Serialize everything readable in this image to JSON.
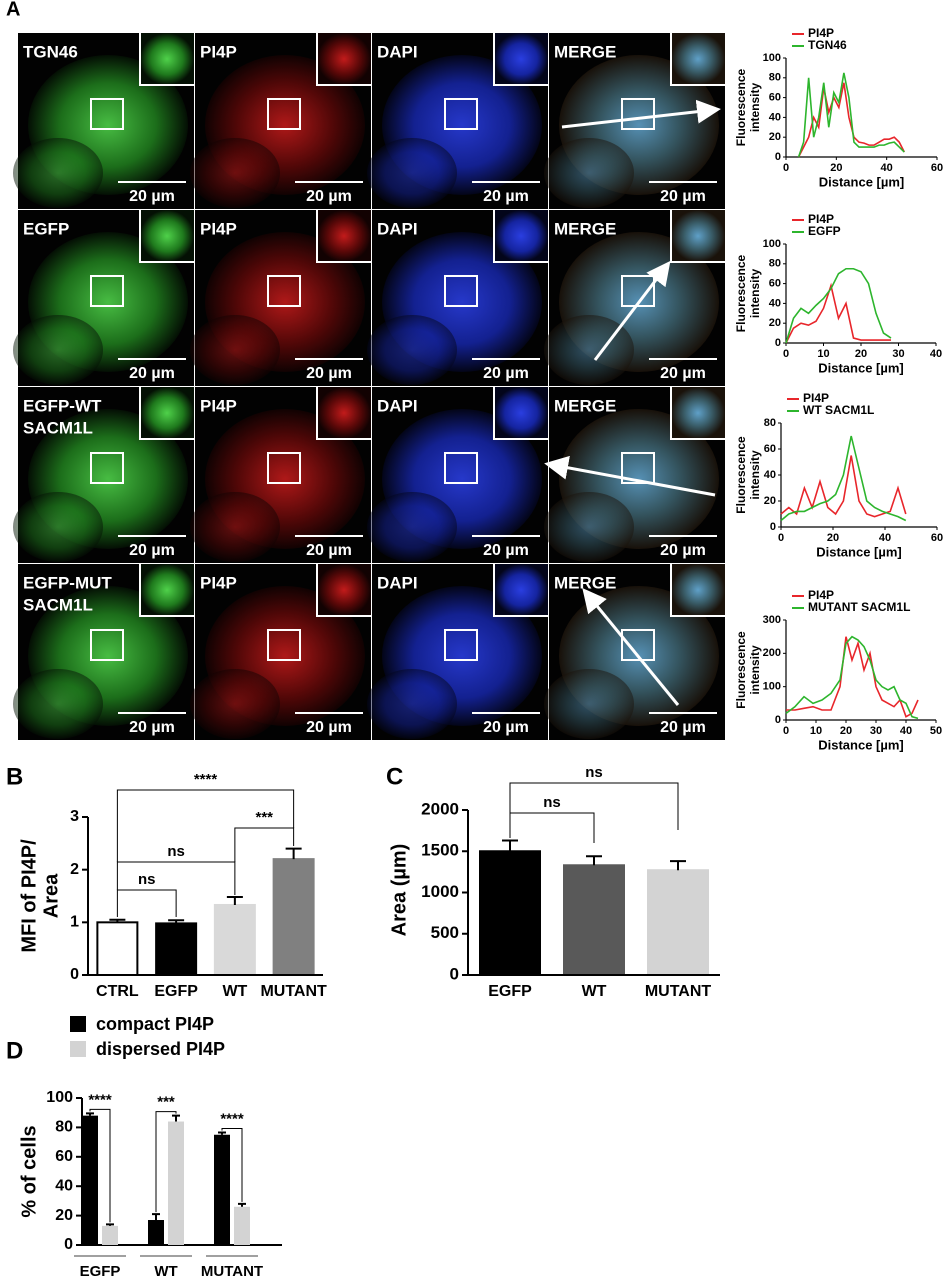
{
  "panels": {
    "a": "A",
    "b": "B",
    "c": "C",
    "d": "D"
  },
  "micrographs": {
    "rows": [
      {
        "panels": [
          {
            "label": [
              "TGN46"
            ],
            "scale": "20 µm"
          },
          {
            "label": [
              "PI4P"
            ],
            "scale": "20 µm"
          },
          {
            "label": [
              "DAPI"
            ],
            "scale": "20 µm"
          },
          {
            "label": [
              "MERGE"
            ],
            "scale": "20 µm"
          }
        ]
      },
      {
        "panels": [
          {
            "label": [
              "EGFP"
            ],
            "scale": "20 µm"
          },
          {
            "label": [
              "PI4P"
            ],
            "scale": "20 µm"
          },
          {
            "label": [
              "DAPI"
            ],
            "scale": "20 µm"
          },
          {
            "label": [
              "MERGE"
            ],
            "scale": "20 µm"
          }
        ]
      },
      {
        "panels": [
          {
            "label": [
              "EGFP-WT",
              "SACM1L"
            ],
            "scale": "20 µm"
          },
          {
            "label": [
              "PI4P"
            ],
            "scale": "20 µm"
          },
          {
            "label": [
              "DAPI"
            ],
            "scale": "20 µm"
          },
          {
            "label": [
              "MERGE"
            ],
            "scale": "20 µm"
          }
        ]
      },
      {
        "panels": [
          {
            "label": [
              "EGFP-MUT",
              "SACM1L"
            ],
            "scale": "20 µm"
          },
          {
            "label": [
              "PI4P"
            ],
            "scale": "20 µm"
          },
          {
            "label": [
              "DAPI"
            ],
            "scale": "20 µm"
          },
          {
            "label": [
              "MERGE"
            ],
            "scale": "20 µm"
          }
        ]
      }
    ]
  },
  "chart_data": [
    {
      "type": "line",
      "y_label": [
        "Fluorescence",
        "intensity"
      ],
      "x_label": "Distance [µm]",
      "x": [
        5,
        7,
        9,
        11,
        13,
        15,
        17,
        19,
        21,
        23,
        25,
        27,
        29,
        31,
        33,
        35,
        37,
        39,
        41,
        43,
        45,
        47
      ],
      "series": [
        {
          "name": "PI4P",
          "color": "#e8262b",
          "values": [
            0,
            10,
            20,
            40,
            30,
            70,
            45,
            60,
            50,
            75,
            40,
            20,
            15,
            14,
            12,
            12,
            15,
            18,
            18,
            20,
            15,
            5
          ]
        },
        {
          "name": "TGN46",
          "color": "#2db52d",
          "values": [
            0,
            15,
            80,
            20,
            40,
            75,
            30,
            65,
            55,
            85,
            60,
            15,
            10,
            10,
            10,
            10,
            12,
            12,
            14,
            15,
            10,
            5
          ]
        }
      ],
      "xlim": [
        0,
        60
      ],
      "xticks": [
        0,
        20,
        40,
        60
      ],
      "ylim": [
        0,
        100
      ],
      "yticks": [
        0,
        20,
        40,
        60,
        80,
        100
      ]
    },
    {
      "type": "line",
      "y_label": [
        "Fluorescence",
        "intensity"
      ],
      "x_label": "Distance [µm]",
      "x": [
        0,
        2,
        4,
        6,
        8,
        10,
        12,
        14,
        16,
        18,
        20,
        22,
        24,
        26,
        28
      ],
      "series": [
        {
          "name": "PI4P",
          "color": "#e8262b",
          "values": [
            0,
            15,
            20,
            18,
            22,
            35,
            58,
            25,
            40,
            5,
            3,
            3,
            3,
            3,
            3
          ]
        },
        {
          "name": "EGFP",
          "color": "#2db52d",
          "values": [
            0,
            25,
            35,
            30,
            38,
            45,
            55,
            70,
            75,
            75,
            72,
            60,
            30,
            10,
            5
          ]
        }
      ],
      "xlim": [
        0,
        40
      ],
      "xticks": [
        0,
        10,
        20,
        30,
        40
      ],
      "ylim": [
        0,
        100
      ],
      "yticks": [
        0,
        20,
        40,
        60,
        80,
        100
      ]
    },
    {
      "type": "line",
      "y_label": [
        "Fluorescence",
        "intensity"
      ],
      "x_label": "Distance [µm]",
      "x": [
        0,
        3,
        6,
        9,
        12,
        15,
        18,
        21,
        24,
        27,
        30,
        33,
        36,
        39,
        42,
        45,
        48
      ],
      "series": [
        {
          "name": "PI4P",
          "color": "#e8262b",
          "values": [
            10,
            15,
            10,
            30,
            15,
            35,
            15,
            10,
            20,
            55,
            20,
            10,
            8,
            10,
            12,
            30,
            10
          ]
        },
        {
          "name": "WT SACM1L",
          "color": "#2db52d",
          "values": [
            5,
            10,
            12,
            12,
            15,
            18,
            20,
            25,
            40,
            70,
            45,
            20,
            15,
            12,
            10,
            8,
            5
          ]
        }
      ],
      "xlim": [
        0,
        60
      ],
      "xticks": [
        0,
        20,
        40,
        60
      ],
      "ylim": [
        0,
        80
      ],
      "yticks": [
        0,
        20,
        40,
        60,
        80
      ]
    },
    {
      "type": "line",
      "y_label": [
        "Fluorescence",
        "intensity"
      ],
      "x_label": "Distance [µm]",
      "x": [
        0,
        3,
        6,
        9,
        12,
        15,
        18,
        20,
        22,
        24,
        26,
        28,
        30,
        32,
        34,
        36,
        38,
        40,
        42,
        44
      ],
      "series": [
        {
          "name": "PI4P",
          "color": "#e8262b",
          "values": [
            30,
            30,
            35,
            40,
            30,
            30,
            100,
            250,
            180,
            230,
            150,
            200,
            100,
            60,
            50,
            40,
            60,
            10,
            20,
            60
          ]
        },
        {
          "name": "MUTANT SACM1L",
          "color": "#2db52d",
          "values": [
            20,
            40,
            70,
            50,
            60,
            80,
            120,
            230,
            250,
            240,
            220,
            180,
            120,
            100,
            90,
            100,
            60,
            50,
            10,
            5
          ]
        }
      ],
      "xlim": [
        0,
        50
      ],
      "xticks": [
        0,
        10,
        20,
        30,
        40,
        50
      ],
      "ylim": [
        0,
        300
      ],
      "yticks": [
        0,
        100,
        200,
        300
      ]
    },
    {
      "type": "bar",
      "y_label": [
        "MFI of PI4P/",
        "Area"
      ],
      "categories": [
        "CTRL",
        "EGFP",
        "WT",
        "MUTANT"
      ],
      "values": [
        1.0,
        0.98,
        1.33,
        2.2
      ],
      "errors": [
        0.05,
        0.06,
        0.15,
        0.2
      ],
      "colors": [
        "#ffffff",
        "#000000",
        "#d9d9d9",
        "#808080"
      ],
      "edgecolors": [
        "#000000",
        "#000000",
        "#d9d9d9",
        "#808080"
      ],
      "ylim": [
        0,
        3
      ],
      "yticks": [
        0,
        1,
        2,
        3
      ],
      "significance": [
        {
          "label": "****",
          "pair": [
            "CTRL",
            "MUTANT"
          ]
        },
        {
          "label": "***",
          "pair": [
            "WT",
            "MUTANT"
          ]
        },
        {
          "label": "ns",
          "pair": [
            "CTRL",
            "WT"
          ]
        },
        {
          "label": "ns",
          "pair": [
            "CTRL",
            "EGFP"
          ]
        }
      ]
    },
    {
      "type": "bar",
      "y_label": [
        "Area (µm)"
      ],
      "categories": [
        "EGFP",
        "WT",
        "MUTANT"
      ],
      "values": [
        1500,
        1330,
        1270
      ],
      "errors": [
        130,
        110,
        110
      ],
      "colors": [
        "#000000",
        "#595959",
        "#d3d3d3"
      ],
      "edgecolors": [
        "#000000",
        "#595959",
        "#d3d3d3"
      ],
      "ylim": [
        0,
        2000
      ],
      "yticks": [
        0,
        500,
        1000,
        1500,
        2000
      ],
      "significance": [
        {
          "label": "ns",
          "pair": [
            "EGFP",
            "MUTANT"
          ]
        },
        {
          "label": "ns",
          "pair": [
            "EGFP",
            "WT"
          ]
        }
      ]
    },
    {
      "type": "grouped_bar",
      "y_label": [
        "% of cells"
      ],
      "categories": [
        "EGFP",
        "WT",
        "MUTANT"
      ],
      "series": [
        {
          "name": "compact PI4P",
          "color": "#000000",
          "values": [
            88,
            17,
            75
          ],
          "errors": [
            1.5,
            4,
            1.5
          ]
        },
        {
          "name": "dispersed PI4P",
          "color": "#d3d3d3",
          "values": [
            13,
            84,
            26
          ],
          "errors": [
            1,
            4,
            2
          ]
        }
      ],
      "ylim": [
        0,
        100
      ],
      "yticks": [
        0,
        20,
        40,
        60,
        80,
        100
      ],
      "significance": [
        {
          "label": "****"
        },
        {
          "label": "***"
        },
        {
          "label": "****"
        }
      ]
    }
  ]
}
